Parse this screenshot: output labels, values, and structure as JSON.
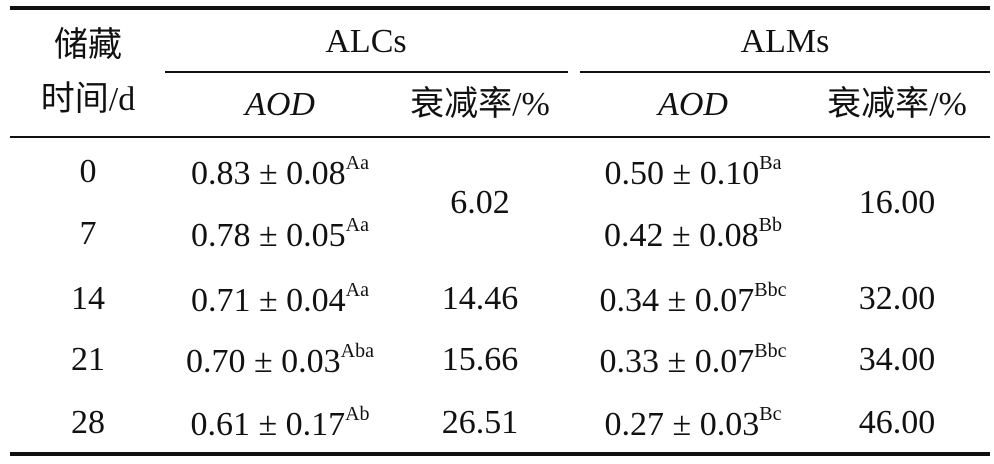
{
  "header": {
    "storage_line1": "储藏",
    "storage_line2": "时间/d",
    "groups": [
      {
        "name": "ALCs",
        "columns": [
          "AOD",
          "衰减率/%"
        ]
      },
      {
        "name": "ALMs",
        "columns": [
          "AOD",
          "衰减率/%"
        ]
      }
    ]
  },
  "table": {
    "rows": [
      {
        "time": "0",
        "alcs_aod": "0.83 ± 0.08",
        "alcs_sig": "Aa",
        "alms_aod": "0.50 ± 0.10",
        "alms_sig": "Ba"
      },
      {
        "time": "7",
        "alcs_aod": "0.78 ± 0.05",
        "alcs_sig": "Aa",
        "alms_aod": "0.42 ± 0.08",
        "alms_sig": "Bb"
      },
      {
        "time": "14",
        "alcs_aod": "0.71 ± 0.04",
        "alcs_sig": "Aa",
        "alms_aod": "0.34 ± 0.07",
        "alms_sig": "Bbc"
      },
      {
        "time": "21",
        "alcs_aod": "0.70 ± 0.03",
        "alcs_sig": "Aba",
        "alms_aod": "0.33 ± 0.07",
        "alms_sig": "Bbc"
      },
      {
        "time": "28",
        "alcs_aod": "0.61 ± 0.17",
        "alcs_sig": "Ab",
        "alms_aod": "0.27 ± 0.03",
        "alms_sig": "Bc"
      }
    ],
    "alcs_rates": [
      "6.02",
      "14.46",
      "15.66",
      "26.51"
    ],
    "alms_rates": [
      "16.00",
      "32.00",
      "34.00",
      "46.00"
    ]
  }
}
